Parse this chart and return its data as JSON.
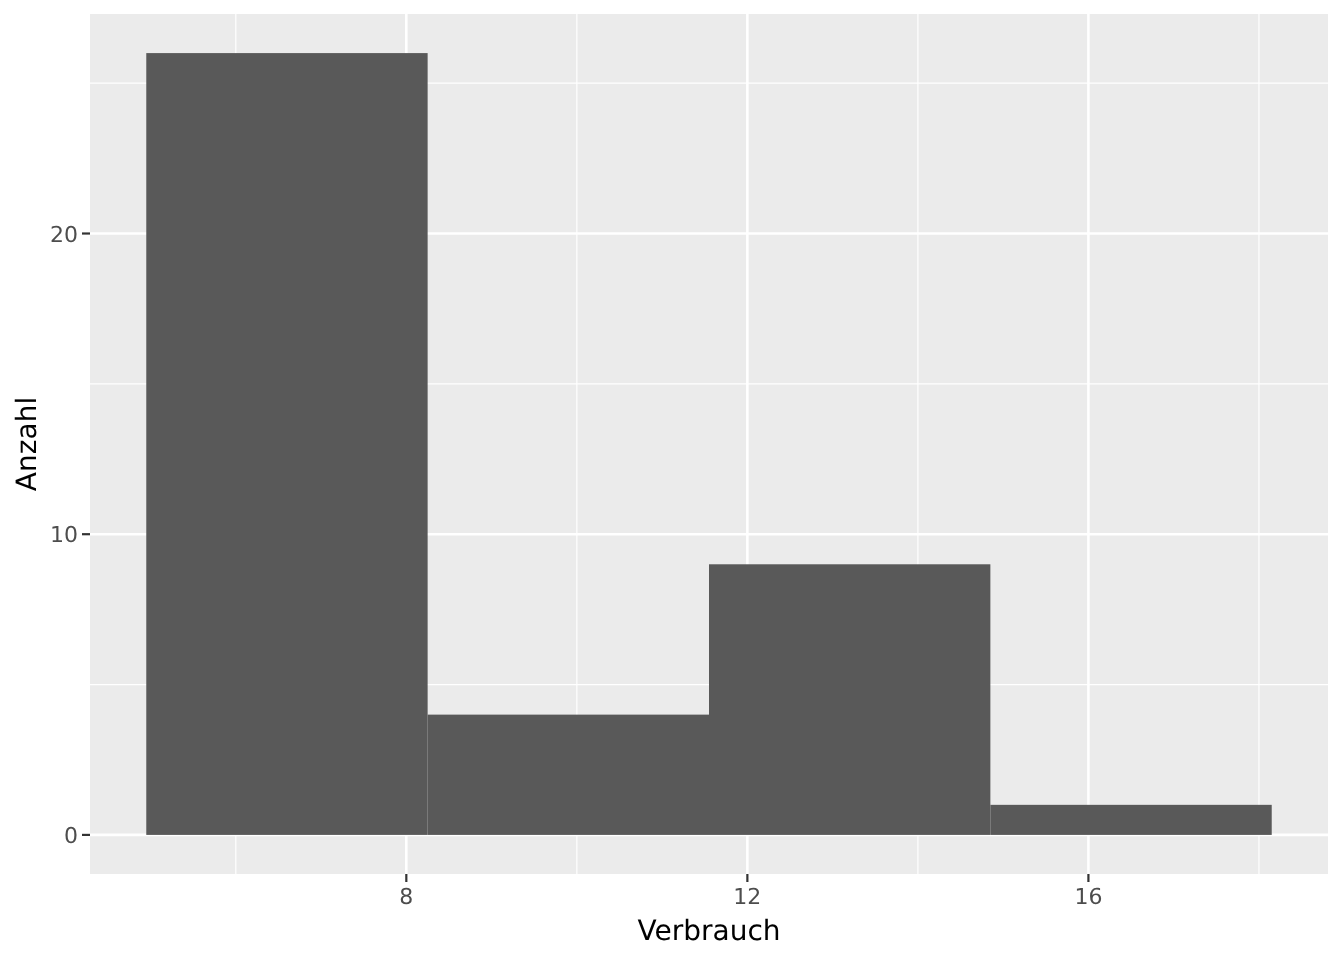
{
  "chart_data": {
    "type": "histogram",
    "xlabel": "Verbrauch",
    "ylabel": "Anzahl",
    "bins": [
      4.95,
      8.25,
      11.55,
      14.85,
      18.15
    ],
    "values": [
      26,
      4,
      9,
      1
    ],
    "color": "#595959",
    "xlim": [
      4.29,
      18.81
    ],
    "ylim": [
      -1.3,
      27.3
    ],
    "xticks": [
      {
        "value": 6,
        "label": null
      },
      8,
      {
        "value": 10,
        "label": null
      },
      12,
      {
        "value": 14,
        "label": null
      },
      16,
      {
        "value": 18,
        "label": null
      }
    ],
    "yticks": [
      0,
      {
        "value": 5,
        "label": null
      },
      10,
      {
        "value": 15,
        "label": null
      },
      20,
      {
        "value": 25,
        "label": null
      }
    ],
    "grid": true
  }
}
